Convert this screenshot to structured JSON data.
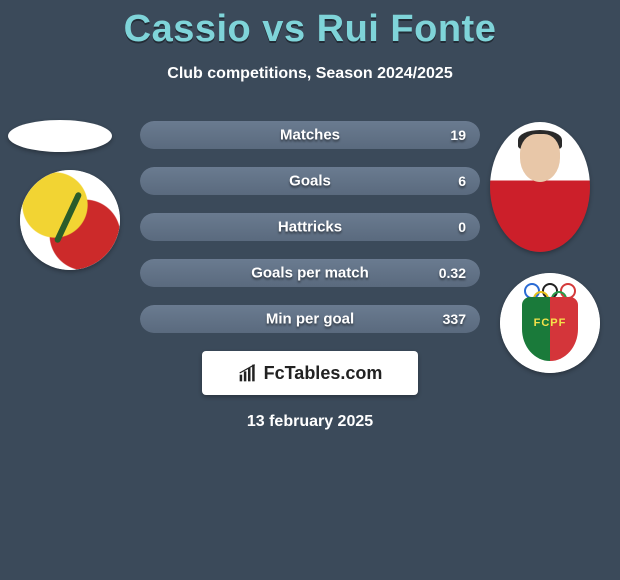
{
  "title": "Cassio vs Rui Fonte",
  "subtitle": "Club competitions, Season 2024/2025",
  "footer_date": "13 february 2025",
  "brand": {
    "text": "FcTables.com",
    "icon_name": "chart-bars-icon"
  },
  "colors": {
    "background": "#3b4a5a",
    "title": "#7fd4d9",
    "text": "#ffffff",
    "bar_track": "#526073",
    "bar_fill": "#5a6a7e",
    "brand_box": "#ffffff"
  },
  "players": {
    "left": {
      "name": "Cassio",
      "club_logo_name": "leixoes-logo"
    },
    "right": {
      "name": "Rui Fonte",
      "club_logo_name": "pacos-ferreira-logo",
      "shirt_color": "#cc1f2a",
      "logo_colors": {
        "shield_left": "#1a7a3a",
        "shield_right": "#d4353a",
        "letters": "#f4e24a"
      },
      "logo_text": "FCPF"
    }
  },
  "stats": [
    {
      "label": "Matches",
      "value_right": "19",
      "fill_pct": 100
    },
    {
      "label": "Goals",
      "value_right": "6",
      "fill_pct": 100
    },
    {
      "label": "Hattricks",
      "value_right": "0",
      "fill_pct": 100
    },
    {
      "label": "Goals per match",
      "value_right": "0.32",
      "fill_pct": 100
    },
    {
      "label": "Min per goal",
      "value_right": "337",
      "fill_pct": 100
    }
  ],
  "ring_colors": [
    "#2a6bd4",
    "#222",
    "#d43a3a",
    "#e8c21a",
    "#2a9a4a"
  ]
}
